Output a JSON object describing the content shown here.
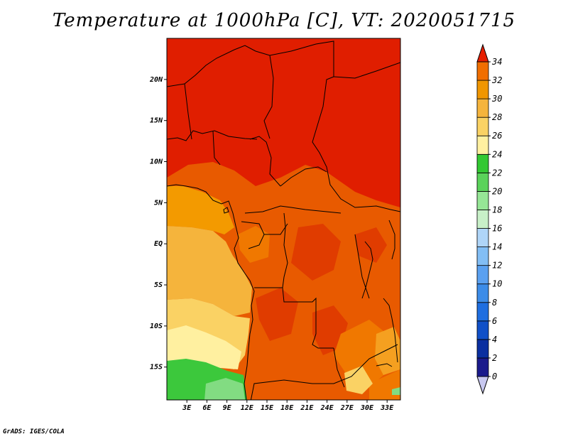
{
  "title": "Temperature at 1000hPa [C], VT: 2020051715",
  "credit": "GrADS: IGES/COLA",
  "map": {
    "lat_range": [
      -19,
      25
    ],
    "lon_range": [
      0,
      35
    ],
    "lat_labels": [
      {
        "lat": 20,
        "text": "20N"
      },
      {
        "lat": 15,
        "text": "15N"
      },
      {
        "lat": 10,
        "text": "10N"
      },
      {
        "lat": 5,
        "text": "5N"
      },
      {
        "lat": 0,
        "text": "EQ"
      },
      {
        "lat": -5,
        "text": "5S"
      },
      {
        "lat": -10,
        "text": "10S"
      },
      {
        "lat": -15,
        "text": "15S"
      }
    ],
    "lon_labels": [
      {
        "lon": 3,
        "text": "3E"
      },
      {
        "lon": 6,
        "text": "6E"
      },
      {
        "lon": 9,
        "text": "9E"
      },
      {
        "lon": 12,
        "text": "12E"
      },
      {
        "lon": 15,
        "text": "15E"
      },
      {
        "lon": 18,
        "text": "18E"
      },
      {
        "lon": 21,
        "text": "21E"
      },
      {
        "lon": 24,
        "text": "24E"
      },
      {
        "lon": 27,
        "text": "27E"
      },
      {
        "lon": 30,
        "text": "30E"
      },
      {
        "lon": 33,
        "text": "33E"
      }
    ]
  },
  "colorbar": {
    "levels": [
      "0",
      "2",
      "4",
      "6",
      "8",
      "10",
      "12",
      "14",
      "16",
      "18",
      "20",
      "22",
      "24",
      "26",
      "28",
      "30",
      "32",
      "34"
    ],
    "colors": [
      "#1a1a8c",
      "#0a2fa0",
      "#1050c8",
      "#1e6ee0",
      "#3c8ce8",
      "#5aa0f0",
      "#82bef5",
      "#afd5f8",
      "#c8f0c8",
      "#96e696",
      "#5ad25a",
      "#32c832",
      "#fff0a0",
      "#fad264",
      "#f5b43c",
      "#f09600",
      "#f06e00",
      "#e63c00",
      "#e61e00"
    ]
  }
}
